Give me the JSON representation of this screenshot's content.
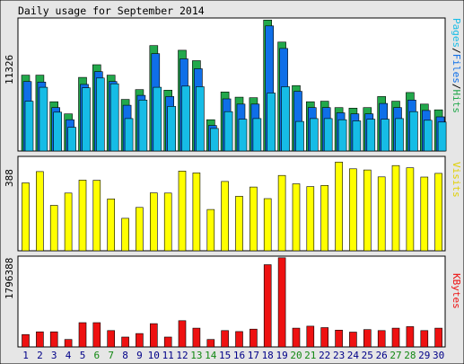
{
  "colors": {
    "background": "#e6e6e6",
    "panel": "#ffffff",
    "hits": "#22a84b",
    "files": "#0f6fe8",
    "pages": "#16bce6",
    "visits": "#ffff00",
    "kbytes": "#ee1111",
    "weekend_label": "#118811",
    "weekday_label": "#000088"
  },
  "chart_data": [
    {
      "type": "bar",
      "title": "Daily usage for September 2014",
      "ylabel_parts": [
        "Pages",
        "Files",
        "Hits"
      ],
      "ymax_label": "11326",
      "ylim": [
        0,
        11326
      ],
      "categories": [
        "1",
        "2",
        "3",
        "4",
        "5",
        "6",
        "7",
        "8",
        "9",
        "10",
        "11",
        "12",
        "13",
        "14",
        "15",
        "16",
        "17",
        "18",
        "19",
        "20",
        "21",
        "22",
        "23",
        "24",
        "25",
        "26",
        "27",
        "28",
        "29",
        "30"
      ],
      "weekend_days": [
        "6",
        "7",
        "13",
        "14",
        "20",
        "21",
        "27",
        "28"
      ],
      "series": [
        {
          "name": "Hits",
          "values": [
            6550,
            6550,
            4250,
            3200,
            6350,
            7450,
            6550,
            4450,
            5300,
            9100,
            5250,
            8700,
            7800,
            2700,
            5100,
            4650,
            4600,
            11300,
            9400,
            5650,
            4250,
            4300,
            3750,
            3700,
            3750,
            4700,
            4300,
            5050,
            4050,
            3550
          ]
        },
        {
          "name": "Files",
          "values": [
            6000,
            5950,
            3750,
            2700,
            5750,
            6850,
            6000,
            3950,
            4800,
            8400,
            4700,
            7950,
            7100,
            2200,
            4500,
            4050,
            4050,
            10800,
            8850,
            5150,
            3750,
            3750,
            3300,
            3200,
            3200,
            4100,
            3750,
            4400,
            3500,
            2950
          ]
        },
        {
          "name": "Pages",
          "values": [
            4300,
            5500,
            3350,
            2050,
            5450,
            6300,
            5800,
            2800,
            4400,
            5500,
            3850,
            5600,
            5550,
            1950,
            3400,
            2750,
            2800,
            5000,
            5550,
            2550,
            2800,
            2800,
            2700,
            2600,
            2750,
            2750,
            2800,
            3400,
            2650,
            2500
          ]
        }
      ]
    },
    {
      "type": "bar",
      "ylabel": "Visits",
      "ymax_label": "388",
      "ylim": [
        0,
        388
      ],
      "categories": [
        "1",
        "2",
        "3",
        "4",
        "5",
        "6",
        "7",
        "8",
        "9",
        "10",
        "11",
        "12",
        "13",
        "14",
        "15",
        "16",
        "17",
        "18",
        "19",
        "20",
        "21",
        "22",
        "23",
        "24",
        "25",
        "26",
        "27",
        "28",
        "29",
        "30"
      ],
      "series": [
        {
          "name": "Visits",
          "values": [
            293,
            342,
            196,
            249,
            305,
            304,
            224,
            140,
            187,
            250,
            249,
            344,
            336,
            178,
            299,
            235,
            275,
            225,
            325,
            289,
            277,
            282,
            383,
            354,
            349,
            319,
            368,
            358,
            318,
            334
          ]
        }
      ]
    },
    {
      "type": "bar",
      "ylabel": "KBytes",
      "ymax_label": "1796388",
      "ylim": [
        0,
        1796388
      ],
      "categories": [
        "1",
        "2",
        "3",
        "4",
        "5",
        "6",
        "7",
        "8",
        "9",
        "10",
        "11",
        "12",
        "13",
        "14",
        "15",
        "16",
        "17",
        "18",
        "19",
        "20",
        "21",
        "22",
        "23",
        "24",
        "25",
        "26",
        "27",
        "28",
        "29",
        "30"
      ],
      "series": [
        {
          "name": "KBytes",
          "values": [
            250000,
            305000,
            305000,
            150000,
            490000,
            490000,
            330000,
            200000,
            270000,
            470000,
            200000,
            530000,
            380000,
            150000,
            330000,
            310000,
            360000,
            1660000,
            1800000,
            380000,
            420000,
            390000,
            340000,
            300000,
            350000,
            330000,
            380000,
            410000,
            330000,
            380000
          ]
        }
      ]
    }
  ]
}
